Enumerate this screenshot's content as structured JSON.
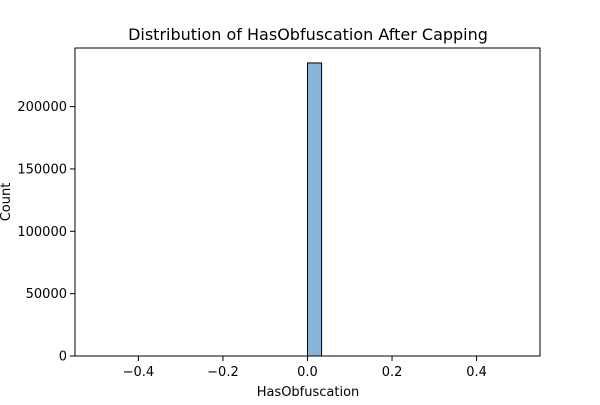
{
  "chart_data": {
    "type": "bar",
    "title": "Distribution of HasObfuscation After Capping",
    "xlabel": "HasObfuscation",
    "ylabel": "Count",
    "xlim": [
      -0.55,
      0.55
    ],
    "ylim": [
      0,
      247000
    ],
    "x_ticks": [
      -0.4,
      -0.2,
      0.0,
      0.2,
      0.4
    ],
    "x_tick_labels": [
      "−0.4",
      "−0.2",
      "0.0",
      "0.2",
      "0.4"
    ],
    "y_ticks": [
      0,
      50000,
      100000,
      150000,
      200000
    ],
    "y_tick_labels": [
      "0",
      "50000",
      "100000",
      "150000",
      "200000"
    ],
    "bins": [
      {
        "x0": -0.5,
        "x1": 0.0,
        "count": 0
      },
      {
        "x0": 0.0,
        "x1": 0.0333,
        "count": 235000
      },
      {
        "x0": 0.0333,
        "x1": 0.5,
        "count": 0
      }
    ],
    "grid": false,
    "bar_color": "#8ab4d6",
    "edge_color": "#000000"
  }
}
